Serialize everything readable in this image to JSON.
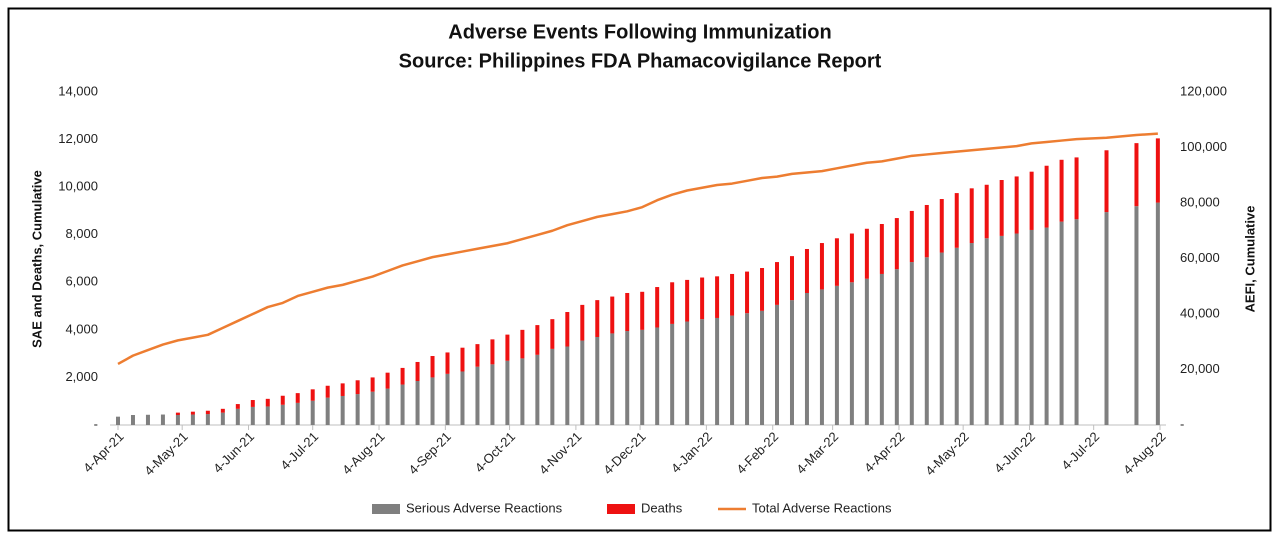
{
  "chart_data": {
    "type": "bar",
    "title": "Adverse Events Following Immunization",
    "subtitle": "Source: Philippines FDA  Phamacovigilance Report",
    "y_label": "SAE and Deaths, Cumulative",
    "y2_label": "AEFI, Cumulative",
    "grid": false,
    "legend": "bottom",
    "stacked": true,
    "x": [
      "2021-04-04",
      "2021-04-11",
      "2021-04-18",
      "2021-04-25",
      "2021-05-02",
      "2021-05-09",
      "2021-05-16",
      "2021-05-23",
      "2021-05-30",
      "2021-06-06",
      "2021-06-13",
      "2021-06-20",
      "2021-06-27",
      "2021-07-04",
      "2021-07-11",
      "2021-07-18",
      "2021-07-25",
      "2021-08-01",
      "2021-08-08",
      "2021-08-15",
      "2021-08-22",
      "2021-08-29",
      "2021-09-05",
      "2021-09-12",
      "2021-09-19",
      "2021-09-26",
      "2021-10-03",
      "2021-10-10",
      "2021-10-17",
      "2021-10-24",
      "2021-10-31",
      "2021-11-07",
      "2021-11-14",
      "2021-11-21",
      "2021-11-28",
      "2021-12-05",
      "2021-12-12",
      "2021-12-19",
      "2021-12-26",
      "2022-01-02",
      "2022-01-09",
      "2022-01-16",
      "2022-01-23",
      "2022-01-30",
      "2022-02-06",
      "2022-02-13",
      "2022-02-20",
      "2022-02-27",
      "2022-03-06",
      "2022-03-13",
      "2022-03-20",
      "2022-03-27",
      "2022-04-03",
      "2022-04-10",
      "2022-04-17",
      "2022-04-24",
      "2022-05-01",
      "2022-05-08",
      "2022-05-15",
      "2022-05-22",
      "2022-05-29",
      "2022-06-05",
      "2022-06-12",
      "2022-06-19",
      "2022-06-26",
      "2022-07-10",
      "2022-07-24",
      "2022-08-03"
    ],
    "xlim": [
      "2021-04-04",
      "2022-08-04"
    ],
    "xticks": [
      {
        "value": "2021-04-04",
        "label": "4-Apr-21"
      },
      {
        "value": "2021-05-04",
        "label": "4-May-21"
      },
      {
        "value": "2021-06-04",
        "label": "4-Jun-21"
      },
      {
        "value": "2021-07-04",
        "label": "4-Jul-21"
      },
      {
        "value": "2021-08-04",
        "label": "4-Aug-21"
      },
      {
        "value": "2021-09-04",
        "label": "4-Sep-21"
      },
      {
        "value": "2021-10-04",
        "label": "4-Oct-21"
      },
      {
        "value": "2021-11-04",
        "label": "4-Nov-21"
      },
      {
        "value": "2021-12-04",
        "label": "4-Dec-21"
      },
      {
        "value": "2022-01-04",
        "label": "4-Jan-22"
      },
      {
        "value": "2022-02-04",
        "label": "4-Feb-22"
      },
      {
        "value": "2022-03-04",
        "label": "4-Mar-22"
      },
      {
        "value": "2022-04-04",
        "label": "4-Apr-22"
      },
      {
        "value": "2022-05-04",
        "label": "4-May-22"
      },
      {
        "value": "2022-06-04",
        "label": "4-Jun-22"
      },
      {
        "value": "2022-07-04",
        "label": "4-Jul-22"
      },
      {
        "value": "2022-08-04",
        "label": "4-Aug-22"
      }
    ],
    "ylim": [
      0,
      14000
    ],
    "yticks": [
      {
        "value": 0,
        "label": "-"
      },
      {
        "value": 2000,
        "label": "2,000"
      },
      {
        "value": 4000,
        "label": "4,000"
      },
      {
        "value": 6000,
        "label": "6,000"
      },
      {
        "value": 8000,
        "label": "8,000"
      },
      {
        "value": 10000,
        "label": "10,000"
      },
      {
        "value": 12000,
        "label": "12,000"
      },
      {
        "value": 14000,
        "label": "14,000"
      }
    ],
    "y2lim": [
      0,
      120000
    ],
    "y2ticks": [
      {
        "value": 0,
        "label": "-"
      },
      {
        "value": 20000,
        "label": "20,000"
      },
      {
        "value": 40000,
        "label": "40,000"
      },
      {
        "value": 60000,
        "label": "60,000"
      },
      {
        "value": 80000,
        "label": "80,000"
      },
      {
        "value": 100000,
        "label": "100,000"
      },
      {
        "value": 120000,
        "label": "120,000"
      }
    ],
    "series": [
      {
        "name": "Serious Adverse Reactions",
        "type": "bar",
        "color": "#7f7f7f",
        "values": [
          350,
          420,
          430,
          440,
          420,
          440,
          460,
          520,
          680,
          760,
          780,
          850,
          930,
          1020,
          1150,
          1220,
          1300,
          1400,
          1530,
          1700,
          1850,
          2000,
          2150,
          2250,
          2450,
          2550,
          2700,
          2800,
          2950,
          3200,
          3300,
          3550,
          3700,
          3850,
          3950,
          4000,
          4100,
          4250,
          4350,
          4450,
          4500,
          4600,
          4700,
          4800,
          5050,
          5250,
          5550,
          5700,
          5850,
          6000,
          6150,
          6350,
          6550,
          6850,
          7050,
          7250,
          7450,
          7650,
          7850,
          7950,
          8050,
          8200,
          8300,
          8550,
          8650,
          8950,
          9200,
          9350
        ]
      },
      {
        "name": "Deaths",
        "type": "bar",
        "color": "#ee1111",
        "values": [
          0,
          0,
          0,
          0,
          100,
          120,
          140,
          160,
          200,
          290,
          320,
          380,
          410,
          480,
          500,
          530,
          580,
          600,
          670,
          700,
          800,
          900,
          900,
          1000,
          950,
          1050,
          1100,
          1200,
          1250,
          1250,
          1450,
          1500,
          1550,
          1550,
          1600,
          1600,
          1700,
          1750,
          1750,
          1750,
          1750,
          1750,
          1750,
          1800,
          1800,
          1850,
          1850,
          1950,
          2000,
          2050,
          2100,
          2100,
          2150,
          2150,
          2200,
          2250,
          2300,
          2300,
          2250,
          2350,
          2400,
          2450,
          2600,
          2600,
          2600,
          2600,
          2650,
          2700
        ]
      },
      {
        "name": "Total Adverse Reactions",
        "type": "line",
        "axis": "y2",
        "color": "#ed7d31",
        "values": [
          22000,
          25000,
          27000,
          29000,
          30500,
          31500,
          32500,
          35000,
          37500,
          40000,
          42500,
          44000,
          46500,
          48000,
          49500,
          50500,
          52000,
          53500,
          55500,
          57500,
          59000,
          60500,
          61500,
          62500,
          63500,
          64500,
          65500,
          67000,
          68500,
          70000,
          72000,
          73500,
          75000,
          76000,
          77000,
          78500,
          81000,
          83000,
          84500,
          85500,
          86500,
          87000,
          88000,
          89000,
          89500,
          90500,
          91000,
          91500,
          92500,
          93500,
          94500,
          95000,
          96000,
          97000,
          97500,
          98000,
          98500,
          99000,
          99500,
          100000,
          100500,
          101500,
          102000,
          102500,
          103000,
          103500,
          104500,
          105000
        ]
      }
    ]
  }
}
